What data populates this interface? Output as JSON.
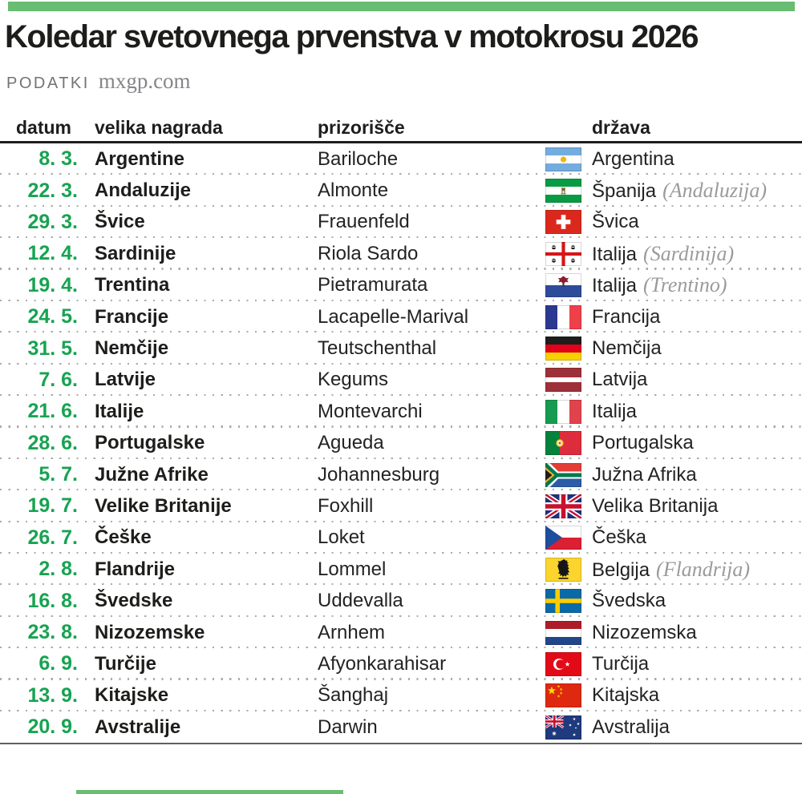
{
  "colors": {
    "accent_green": "#68BD72",
    "date_green": "#17A351"
  },
  "header": {
    "title": "Koledar svetovnega prvenstva v motokrosu 2026",
    "source_label": "PODATKI",
    "source_site": "mxgp.com"
  },
  "table": {
    "columns": {
      "date": "datum",
      "grand_prix": "velika nagrada",
      "venue": "prizorišče",
      "country": "država"
    },
    "rows": [
      {
        "date": "8. 3.",
        "grand_prix": "Argentine",
        "venue": "Bariloche",
        "flag": "argentina",
        "country": "Argentina",
        "note": ""
      },
      {
        "date": "22. 3.",
        "grand_prix": "Andaluzije",
        "venue": "Almonte",
        "flag": "andalusia",
        "country": "Španija",
        "note": "(Andaluzija)"
      },
      {
        "date": "29. 3.",
        "grand_prix": "Švice",
        "venue": "Frauenfeld",
        "flag": "switzerland",
        "country": "Švica",
        "note": ""
      },
      {
        "date": "12. 4.",
        "grand_prix": "Sardinije",
        "venue": "Riola Sardo",
        "flag": "sardinia",
        "country": "Italija",
        "note": "(Sardinija)"
      },
      {
        "date": "19. 4.",
        "grand_prix": "Trentina",
        "venue": "Pietramurata",
        "flag": "trentino",
        "country": "Italija",
        "note": "(Trentino)"
      },
      {
        "date": "24. 5.",
        "grand_prix": "Francije",
        "venue": "Lacapelle-Marival",
        "flag": "france",
        "country": "Francija",
        "note": ""
      },
      {
        "date": "31. 5.",
        "grand_prix": "Nemčije",
        "venue": "Teutschenthal",
        "flag": "germany",
        "country": "Nemčija",
        "note": ""
      },
      {
        "date": "7. 6.",
        "grand_prix": "Latvije",
        "venue": "Kegums",
        "flag": "latvia",
        "country": "Latvija",
        "note": ""
      },
      {
        "date": "21. 6.",
        "grand_prix": "Italije",
        "venue": "Montevarchi",
        "flag": "italy",
        "country": "Italija",
        "note": ""
      },
      {
        "date": "28. 6.",
        "grand_prix": "Portugalske",
        "venue": "Agueda",
        "flag": "portugal",
        "country": "Portugalska",
        "note": ""
      },
      {
        "date": "5. 7.",
        "grand_prix": "Južne Afrike",
        "venue": "Johannesburg",
        "flag": "south-africa",
        "country": "Južna Afrika",
        "note": ""
      },
      {
        "date": "19. 7.",
        "grand_prix": "Velike Britanije",
        "venue": "Foxhill",
        "flag": "great-britain",
        "country": "Velika Britanija",
        "note": ""
      },
      {
        "date": "26. 7.",
        "grand_prix": "Češke",
        "venue": "Loket",
        "flag": "czechia",
        "country": "Češka",
        "note": ""
      },
      {
        "date": "2. 8.",
        "grand_prix": "Flandrije",
        "venue": "Lommel",
        "flag": "flanders",
        "country": "Belgija",
        "note": "(Flandrija)"
      },
      {
        "date": "16. 8.",
        "grand_prix": "Švedske",
        "venue": "Uddevalla",
        "flag": "sweden",
        "country": "Švedska",
        "note": ""
      },
      {
        "date": "23. 8.",
        "grand_prix": "Nizozemske",
        "venue": "Arnhem",
        "flag": "netherlands",
        "country": "Nizozemska",
        "note": ""
      },
      {
        "date": "6. 9.",
        "grand_prix": "Turčije",
        "venue": "Afyonkarahisar",
        "flag": "turkey",
        "country": "Turčija",
        "note": ""
      },
      {
        "date": "13. 9.",
        "grand_prix": "Kitajske",
        "venue": "Šanghaj",
        "flag": "china",
        "country": "Kitajska",
        "note": ""
      },
      {
        "date": "20. 9.",
        "grand_prix": "Avstralije",
        "venue": "Darwin",
        "flag": "australia",
        "country": "Avstralija",
        "note": ""
      }
    ]
  }
}
